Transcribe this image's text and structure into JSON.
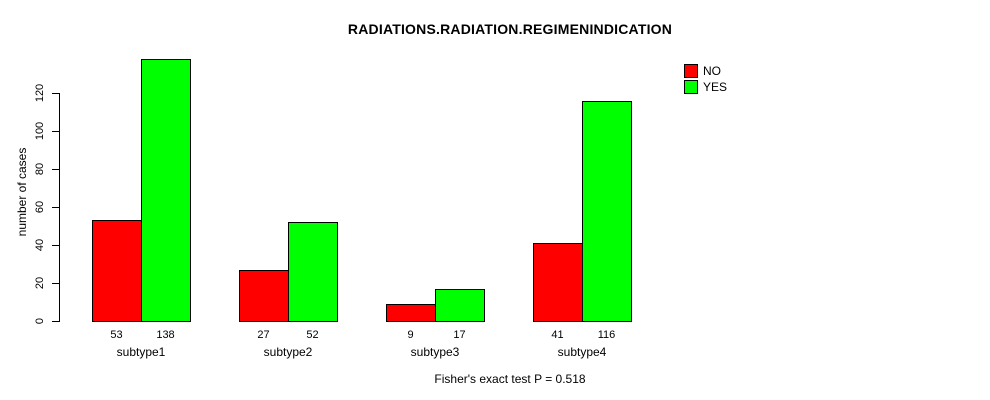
{
  "chart_data": {
    "type": "bar",
    "title": "RADIATIONS.RADIATION.REGIMENINDICATION",
    "xlabel": "",
    "ylabel": "number of cases",
    "categories": [
      "subtype1",
      "subtype2",
      "subtype3",
      "subtype4"
    ],
    "series": [
      {
        "name": "NO",
        "color": "#FF0000",
        "values": [
          53,
          27,
          9,
          41
        ]
      },
      {
        "name": "YES",
        "color": "#00FF00",
        "values": [
          138,
          52,
          17,
          116
        ]
      }
    ],
    "yticks": [
      0,
      20,
      40,
      60,
      80,
      100,
      120
    ],
    "ylim": [
      0,
      140
    ],
    "grid": false,
    "legend_position": "top-right",
    "annotation": "Fisher's exact test P = 0.518"
  },
  "colors": {
    "axis": "#000000",
    "background": "#FFFFFF",
    "bar_border": "#000000"
  }
}
